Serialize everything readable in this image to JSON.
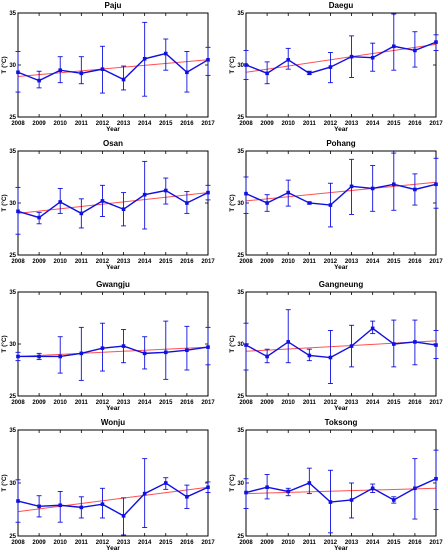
{
  "figure": {
    "xlabel": "Year",
    "ylabel": "T (°C)"
  },
  "colors": {
    "data": "#1010e0",
    "trend": "#ff5050",
    "axes": "#000000"
  },
  "chart_data": [
    {
      "type": "line",
      "title": "Paju",
      "x": [
        2008,
        2009,
        2010,
        2011,
        2012,
        2013,
        2014,
        2015,
        2016,
        2017
      ],
      "values": [
        29.3,
        28.5,
        29.5,
        29.2,
        29.6,
        28.6,
        30.6,
        31.1,
        29.3,
        30.5
      ],
      "err_low": [
        27.4,
        27.8,
        28.3,
        28.2,
        27.3,
        27.6,
        27.0,
        29.5,
        27.4,
        29.0
      ],
      "err_high": [
        31.3,
        29.4,
        30.8,
        30.8,
        31.8,
        29.9,
        34.1,
        32.5,
        31.3,
        31.7
      ],
      "trend": [
        28.9,
        30.5
      ],
      "xlim": [
        2008,
        2017
      ],
      "ylim": [
        25,
        35
      ],
      "yticks": [
        25,
        30,
        35
      ],
      "xlabel": "Year",
      "ylabel": "T (°C)"
    },
    {
      "type": "line",
      "title": "Daegu",
      "x": [
        2008,
        2009,
        2010,
        2011,
        2012,
        2013,
        2014,
        2015,
        2016,
        2017
      ],
      "values": [
        30.0,
        29.2,
        30.5,
        29.2,
        29.8,
        30.8,
        30.7,
        31.8,
        31.4,
        32.2
      ],
      "err_low": [
        28.6,
        28.2,
        29.6,
        29.1,
        28.3,
        28.8,
        29.4,
        29.5,
        29.8,
        31.4
      ],
      "err_high": [
        31.4,
        30.3,
        31.6,
        29.4,
        31.2,
        32.8,
        32.1,
        34.9,
        33.2,
        32.9
      ],
      "trend": [
        29.3,
        32.0
      ],
      "xlim": [
        2008,
        2017
      ],
      "ylim": [
        25,
        35
      ],
      "yticks": [
        25,
        30,
        35
      ],
      "xlabel": "Year",
      "ylabel": "T (°C)"
    },
    {
      "type": "line",
      "title": "Osan",
      "x": [
        2008,
        2009,
        2010,
        2011,
        2012,
        2013,
        2014,
        2015,
        2016,
        2017
      ],
      "values": [
        29.2,
        28.6,
        30.1,
        29.0,
        30.2,
        29.4,
        30.8,
        31.2,
        30.0,
        31.0
      ],
      "err_low": [
        27.0,
        28.0,
        29.0,
        27.6,
        28.7,
        27.8,
        27.5,
        29.9,
        29.0,
        30.3
      ],
      "err_high": [
        31.5,
        29.1,
        31.4,
        30.4,
        31.7,
        31.0,
        34.0,
        32.4,
        31.1,
        31.7
      ],
      "trend": [
        29.0,
        31.0
      ],
      "xlim": [
        2008,
        2017
      ],
      "ylim": [
        25,
        35
      ],
      "yticks": [
        25,
        30,
        35
      ],
      "xlabel": "Year",
      "ylabel": "T (°C)"
    },
    {
      "type": "line",
      "title": "Pohang",
      "x": [
        2008,
        2009,
        2010,
        2011,
        2012,
        2013,
        2014,
        2015,
        2016,
        2017
      ],
      "values": [
        30.9,
        30.0,
        31.0,
        30.0,
        29.8,
        31.6,
        31.4,
        31.8,
        31.3,
        31.8
      ],
      "err_low": [
        29.0,
        29.2,
        29.7,
        29.9,
        27.7,
        28.9,
        29.2,
        29.3,
        29.8,
        29.5
      ],
      "err_high": [
        32.5,
        30.8,
        32.2,
        30.1,
        31.9,
        34.2,
        33.6,
        34.8,
        32.8,
        34.3
      ],
      "trend": [
        30.2,
        32.0
      ],
      "xlim": [
        2008,
        2017
      ],
      "ylim": [
        25,
        35
      ],
      "yticks": [
        25,
        30,
        35
      ],
      "xlabel": "Year",
      "ylabel": "T (°C)"
    },
    {
      "type": "line",
      "title": "Gwangju",
      "x": [
        2008,
        2009,
        2010,
        2011,
        2012,
        2013,
        2014,
        2015,
        2016,
        2017
      ],
      "values": [
        28.8,
        28.8,
        28.8,
        29.1,
        29.6,
        29.8,
        29.1,
        29.2,
        29.4,
        29.7
      ],
      "err_low": [
        28.4,
        28.5,
        27.2,
        26.5,
        27.4,
        28.2,
        27.6,
        26.6,
        27.5,
        28.0
      ],
      "err_high": [
        29.2,
        29.1,
        30.7,
        31.6,
        32.0,
        31.4,
        30.7,
        32.2,
        31.7,
        31.6
      ],
      "trend": [
        28.8,
        29.7
      ],
      "xlim": [
        2008,
        2017
      ],
      "ylim": [
        25,
        35
      ],
      "yticks": [
        25,
        30,
        35
      ],
      "xlabel": "Year",
      "ylabel": "T (°C)"
    },
    {
      "type": "line",
      "title": "Gangneung",
      "x": [
        2008,
        2009,
        2010,
        2011,
        2012,
        2013,
        2014,
        2015,
        2016,
        2017
      ],
      "values": [
        29.9,
        28.8,
        30.2,
        28.9,
        28.7,
        29.8,
        31.5,
        30.0,
        30.2,
        29.9
      ],
      "err_low": [
        27.5,
        28.2,
        28.2,
        28.4,
        26.2,
        27.8,
        31.0,
        27.8,
        28.0,
        28.6
      ],
      "err_high": [
        32.0,
        29.5,
        33.3,
        29.5,
        31.3,
        31.8,
        32.2,
        32.3,
        32.3,
        31.3
      ],
      "trend": [
        29.3,
        30.3
      ],
      "xlim": [
        2008,
        2017
      ],
      "ylim": [
        25,
        35
      ],
      "yticks": [
        25,
        30,
        35
      ],
      "xlabel": "Year",
      "ylabel": "T (°C)"
    },
    {
      "type": "line",
      "title": "Wonju",
      "x": [
        2008,
        2009,
        2010,
        2011,
        2012,
        2013,
        2014,
        2015,
        2016,
        2017
      ],
      "values": [
        28.3,
        27.8,
        27.9,
        27.7,
        28.0,
        26.9,
        29.0,
        30.0,
        28.7,
        29.6
      ],
      "err_low": [
        26.3,
        26.8,
        26.3,
        26.7,
        26.7,
        25.1,
        25.8,
        29.4,
        27.6,
        29.1
      ],
      "err_high": [
        30.3,
        28.8,
        29.2,
        28.7,
        29.5,
        28.6,
        32.3,
        30.5,
        29.8,
        30.1
      ],
      "trend": [
        27.3,
        29.6
      ],
      "xlim": [
        2008,
        2017
      ],
      "ylim": [
        25,
        35
      ],
      "yticks": [
        25,
        30,
        35
      ],
      "xlabel": "Year",
      "ylabel": "T (°C)"
    },
    {
      "type": "line",
      "title": "Toksong",
      "x": [
        2008,
        2009,
        2010,
        2011,
        2012,
        2013,
        2014,
        2015,
        2016,
        2017
      ],
      "values": [
        29.1,
        29.6,
        29.2,
        30.0,
        28.2,
        28.4,
        29.5,
        28.4,
        29.5,
        30.4
      ],
      "err_low": [
        27.6,
        28.5,
        28.8,
        29.0,
        25.3,
        26.7,
        29.1,
        28.1,
        26.6,
        27.5
      ],
      "err_high": [
        30.4,
        30.8,
        29.5,
        31.4,
        31.2,
        30.0,
        29.9,
        28.7,
        32.3,
        33.1
      ],
      "trend": [
        29.0,
        29.5
      ],
      "xlim": [
        2008,
        2017
      ],
      "ylim": [
        25,
        35
      ],
      "yticks": [
        25,
        30,
        35
      ],
      "xlabel": "Year",
      "ylabel": "T (°C)"
    }
  ]
}
